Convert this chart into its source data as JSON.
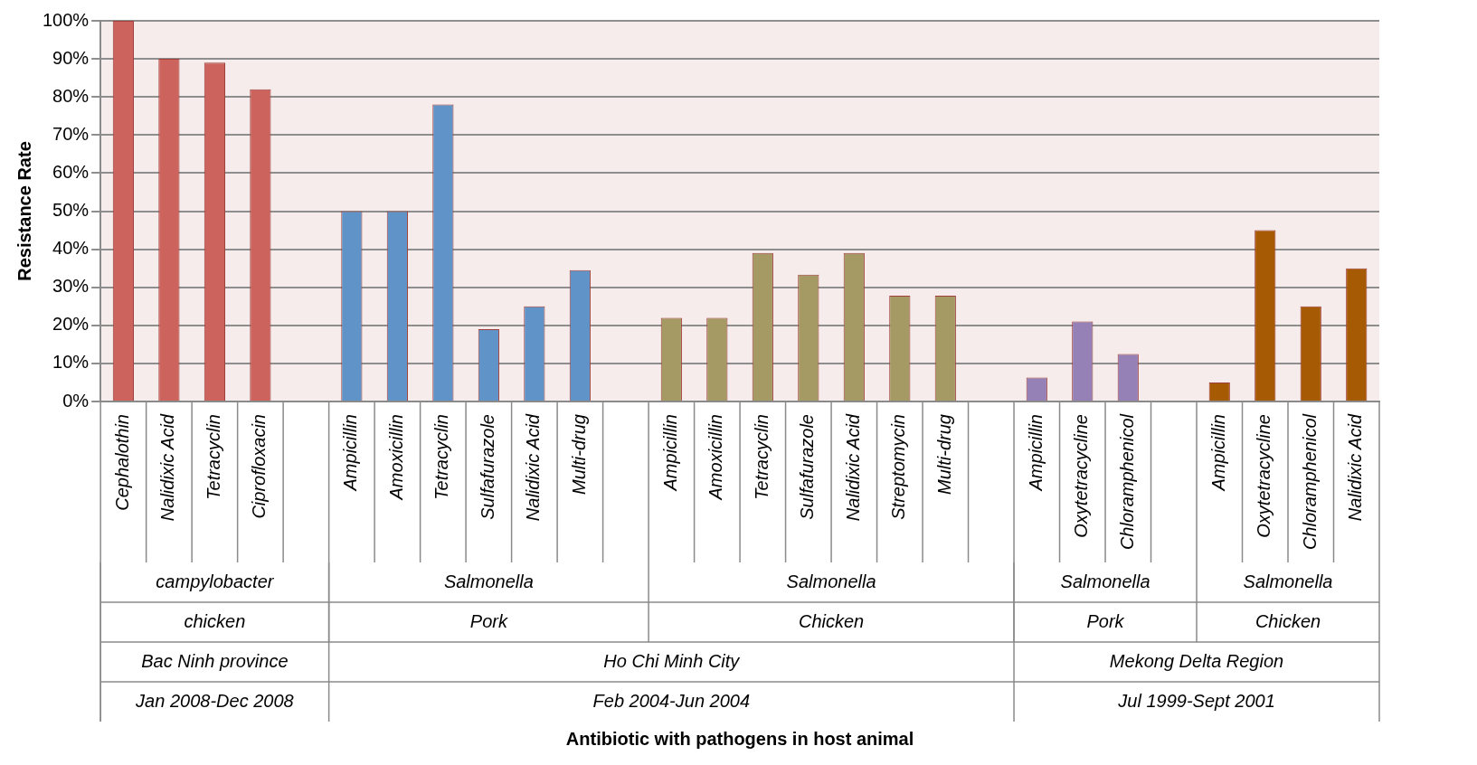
{
  "chart_data": {
    "type": "bar",
    "ylabel": "Resistance Rate",
    "categories": [
      "Cephalothin",
      "Nalidixic Acid",
      "Tetracyclin",
      "Ciprofloxacin",
      null,
      "Ampicillin",
      "Amoxicillin",
      "Tetracyclin",
      "Sulfafurazole",
      "Nalidixic Acid",
      "Multi-drug",
      null,
      "Ampicillin",
      "Amoxicillin",
      "Tetracyclin",
      "Sulfafurazole",
      "Nalidixic Acid",
      "Streptomycin",
      "Multi-drug",
      null,
      "Ampicillin",
      "Oxytetracycline",
      "Chloramphenicol",
      null,
      "Ampicillin",
      "Oxytetracycline",
      "Chloramphenicol",
      "Nalidixic Acid"
    ],
    "values": [
      100,
      90,
      89,
      82,
      null,
      50,
      50,
      78,
      19,
      25,
      34.5,
      null,
      22,
      22,
      39,
      33.3,
      39,
      27.8,
      27.8,
      null,
      6.3,
      21,
      12.5,
      null,
      5,
      45,
      25,
      35
    ],
    "colors": [
      "#cd635d",
      "#cd635d",
      "#cd635d",
      "#cd635d",
      null,
      "#6093c8",
      "#6093c8",
      "#6093c8",
      "#6093c8",
      "#6093c8",
      "#6093c8",
      null,
      "#a59a64",
      "#a59a64",
      "#a59a64",
      "#a59a64",
      "#a59a64",
      "#a59a64",
      "#a59a64",
      null,
      "#9581b6",
      "#9581b6",
      "#9581b6",
      null,
      "#a75a04",
      "#a75a04",
      "#a75a04",
      "#a75a04"
    ],
    "ylim": [
      0,
      100
    ],
    "yticks": [
      {
        "value": 0,
        "label": "0%"
      },
      {
        "value": 10,
        "label": "10%"
      },
      {
        "value": 20,
        "label": "20%"
      },
      {
        "value": 30,
        "label": "30%"
      },
      {
        "value": 40,
        "label": "40%"
      },
      {
        "value": 50,
        "label": "50%"
      },
      {
        "value": 60,
        "label": "60%"
      },
      {
        "value": 70,
        "label": "70%"
      },
      {
        "value": 80,
        "label": "80%"
      },
      {
        "value": 90,
        "label": "90%"
      },
      {
        "value": 100,
        "label": "100%"
      }
    ],
    "grid": "y",
    "legend": false,
    "annotations": [
      "campylobacter",
      "Salmonella",
      "Salmonella",
      "Salmonella",
      "Salmonella",
      "chicken",
      "Pork",
      "Chicken",
      "Pork",
      "Chicken",
      "Bac Ninh province",
      "Ho Chi Minh City",
      "Mekong Delta Region",
      "Jan 2008-Dec 2008",
      "Feb 2004-Jun 2004",
      "Jul 1999-Sept 2001",
      "Antibiotic with pathogens in host animal"
    ]
  }
}
